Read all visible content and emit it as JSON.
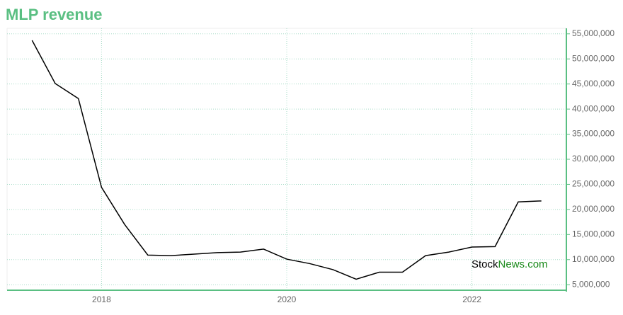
{
  "chart_data": {
    "type": "line",
    "title": "MLP revenue",
    "x": [
      2017.25,
      2017.5,
      2017.75,
      2018,
      2018.25,
      2018.5,
      2018.75,
      2019,
      2019.25,
      2019.5,
      2019.75,
      2020,
      2020.25,
      2020.5,
      2020.75,
      2021,
      2021.25,
      2021.5,
      2021.75,
      2022,
      2022.25,
      2022.5,
      2022.75
    ],
    "series": [
      {
        "name": "MLP revenue",
        "color": "#000000",
        "values": [
          53700000,
          45100000,
          42100000,
          24400000,
          17000000,
          10900000,
          10800000,
          11100000,
          11400000,
          11500000,
          12100000,
          10100000,
          9200000,
          8000000,
          6100000,
          7500000,
          7500000,
          10800000,
          11500000,
          12500000,
          12600000,
          21500000,
          21700000
        ]
      }
    ],
    "xlim": [
      2016.98,
      2023.02
    ],
    "xticks": [
      2018,
      2020,
      2022
    ],
    "ylim": [
      3900000,
      56100000
    ],
    "yticks": [
      {
        "value": 5000000,
        "label": "5,000,000"
      },
      {
        "value": 10000000,
        "label": "10,000,000"
      },
      {
        "value": 15000000,
        "label": "15,000,000"
      },
      {
        "value": 20000000,
        "label": "20,000,000"
      },
      {
        "value": 25000000,
        "label": "25,000,000"
      },
      {
        "value": 30000000,
        "label": "30,000,000"
      },
      {
        "value": 35000000,
        "label": "35,000,000"
      },
      {
        "value": 40000000,
        "label": "40,000,000"
      },
      {
        "value": 45000000,
        "label": "45,000,000"
      },
      {
        "value": 50000000,
        "label": "50,000,000"
      },
      {
        "value": 55000000,
        "label": "55,000,000"
      }
    ],
    "grid": true,
    "axis_color": "#5abf82",
    "watermark": {
      "part1": "Stock",
      "part2": "News.com"
    }
  }
}
